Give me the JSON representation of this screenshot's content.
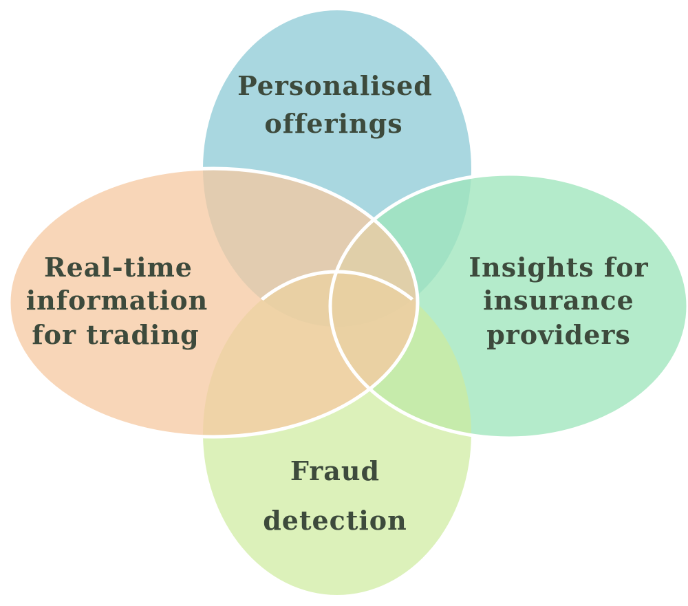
{
  "diagram": {
    "top": {
      "line1": "Personalised",
      "line2": "offerings",
      "color": "#a9d7e0"
    },
    "left": {
      "line1": "Real-time",
      "line2": "information",
      "line3": "for trading",
      "color": "#f6c8a0"
    },
    "right": {
      "line1": "Insights for",
      "line2": "insurance",
      "line3": "providers",
      "color": "#9fe6bd"
    },
    "bottom": {
      "line1": "Fraud",
      "line2": "detection",
      "color": "#cdeb9c"
    }
  }
}
